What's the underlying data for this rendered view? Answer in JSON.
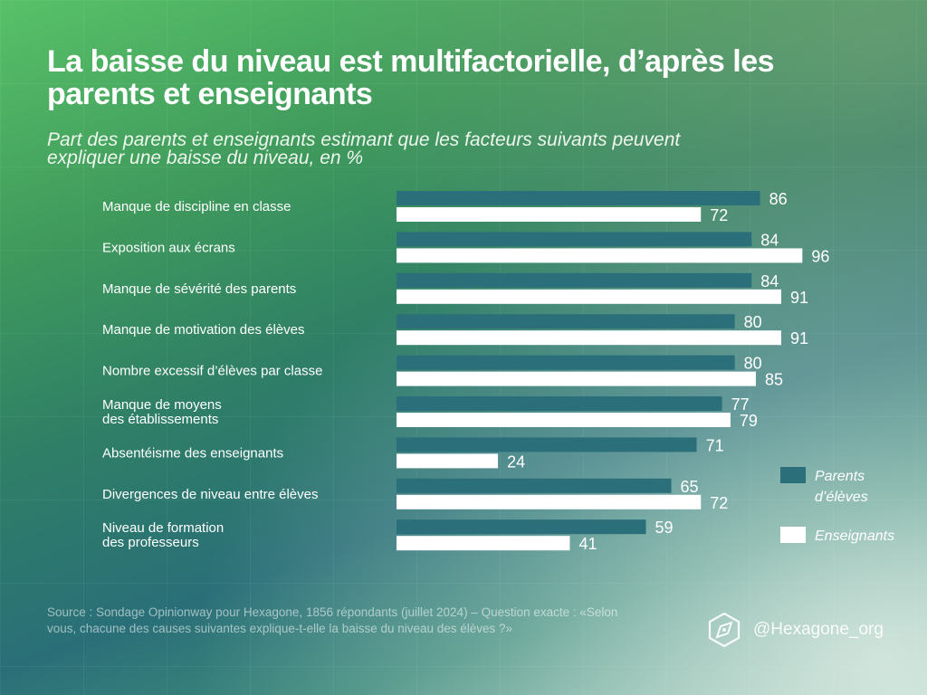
{
  "title": "La baisse du niveau est multifactorielle, d’après les parents et enseignants",
  "subtitle": "Part des parents et enseignants estimant que les facteurs suivants peuvent expliquer une baisse du niveau, en %",
  "source": "Source :  Sondage Opinionway pour Hexagone, 1856 répondants (juillet 2024) – Question exacte : «Selon vous, chacune des causes suivantes explique-t-elle la baisse du niveau des élèves ?»",
  "brand": {
    "handle": "@Hexagone_org",
    "icon": "hexagon-compass-icon"
  },
  "colors": {
    "parents": "#2b6f7a",
    "enseignants": "#ffffff"
  },
  "chart_data": {
    "type": "bar",
    "orientation": "horizontal",
    "title": "La baisse du niveau est multifactorielle, d’après les parents et enseignants",
    "xlim": [
      0,
      100
    ],
    "legend_position": "right",
    "categories": [
      [
        "Manque de discipline en classe"
      ],
      [
        "Exposition aux écrans"
      ],
      [
        "Manque de sévérité des parents"
      ],
      [
        "Manque de motivation des élèves"
      ],
      [
        "Nombre excessif d’élèves par classe"
      ],
      [
        "Manque de moyens",
        "des établissements"
      ],
      [
        "Absentéisme des enseignants"
      ],
      [
        "Divergences de niveau entre élèves"
      ],
      [
        "Niveau de formation",
        "des professeurs"
      ]
    ],
    "series": [
      {
        "name": "Parents d’élèves",
        "legend_lines": [
          "Parents",
          "d’élèves"
        ],
        "values": [
          86,
          84,
          84,
          80,
          80,
          77,
          71,
          65,
          59
        ]
      },
      {
        "name": "Enseignants",
        "legend_lines": [
          "Enseignants"
        ],
        "values": [
          72,
          96,
          91,
          91,
          85,
          79,
          24,
          72,
          41
        ]
      }
    ]
  }
}
